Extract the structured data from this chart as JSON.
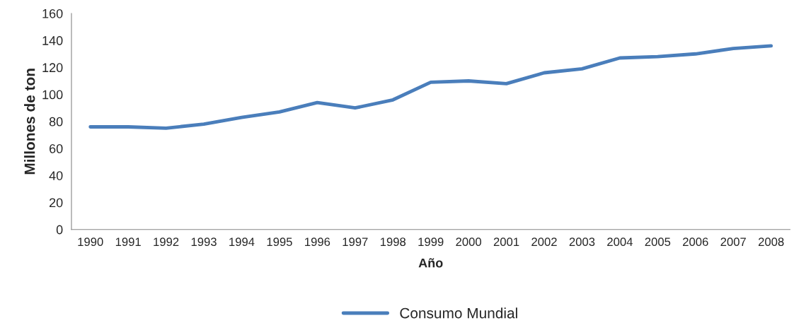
{
  "chart_data": {
    "type": "line",
    "xlabel": "Año",
    "ylabel": "Millones de ton",
    "categories": [
      "1990",
      "1991",
      "1992",
      "1993",
      "1994",
      "1995",
      "1996",
      "1997",
      "1998",
      "1999",
      "2000",
      "2001",
      "2002",
      "2003",
      "2004",
      "2005",
      "2006",
      "2007",
      "2008"
    ],
    "series": [
      {
        "name": "Consumo Mundial",
        "color": "#4a7ebb",
        "values": [
          76,
          76,
          75,
          78,
          83,
          87,
          94,
          90,
          96,
          109,
          110,
          108,
          116,
          119,
          127,
          128,
          130,
          134,
          136
        ]
      }
    ],
    "ylim": [
      0,
      160
    ],
    "yticks": [
      0,
      20,
      40,
      60,
      80,
      100,
      120,
      140,
      160
    ],
    "grid": false,
    "legend": "bottom",
    "marker": "none",
    "line_style": "solid"
  }
}
